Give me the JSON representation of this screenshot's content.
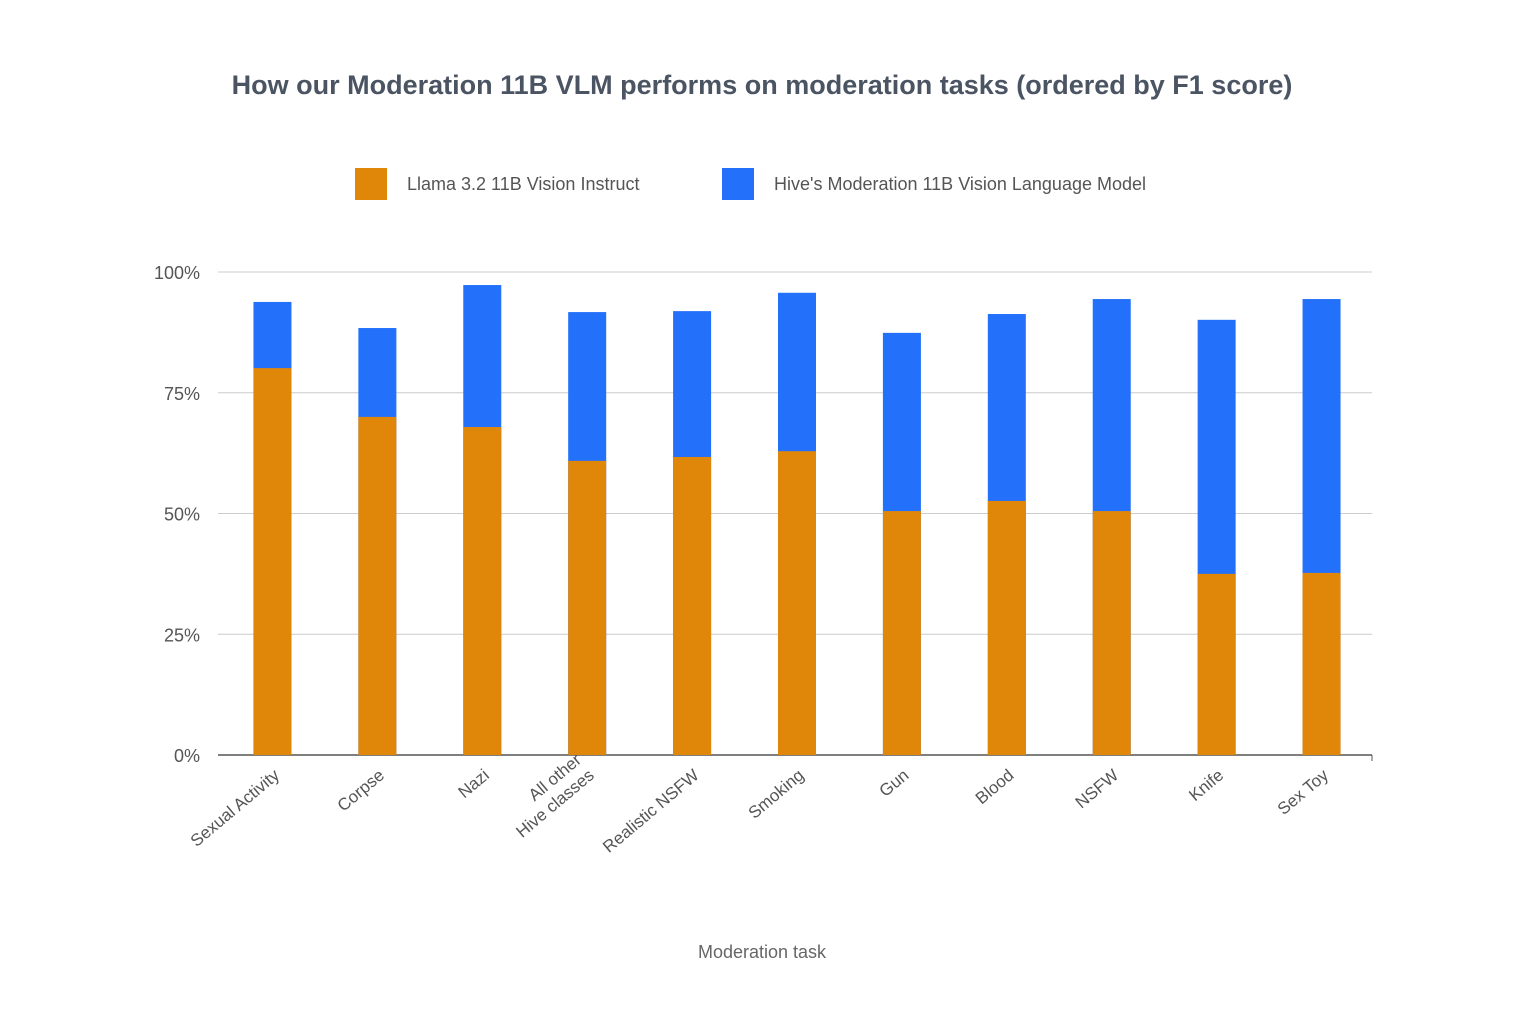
{
  "chart_data": {
    "type": "bar",
    "title": "How our Moderation 11B VLM performs on moderation tasks (ordered by F1 score)",
    "xlabel": "Moderation task",
    "ylabel": "",
    "ylim": [
      0,
      100
    ],
    "yticks": [
      "0%",
      "25%",
      "50%",
      "75%",
      "100%"
    ],
    "ytick_values": [
      0,
      25,
      50,
      75,
      100
    ],
    "grid": true,
    "legend_placement": "top",
    "bar_mode": "overlapped",
    "categories": [
      "Sexual Activity",
      "Corpse",
      "Nazi",
      "All other\nHive classes",
      "Realistic NSFW",
      "Smoking",
      "Gun",
      "Blood",
      "NSFW",
      "Knife",
      "Sex Toy"
    ],
    "series": [
      {
        "name": "Llama 3.2 11B Vision Instruct",
        "color": "#E0870A",
        "values": [
          80.1,
          70.0,
          67.9,
          60.9,
          61.7,
          62.9,
          50.5,
          52.6,
          50.5,
          37.5,
          37.7
        ]
      },
      {
        "name": "Hive's Moderation 11B Vision Language Model",
        "color": "#2370FA",
        "values": [
          93.8,
          88.4,
          97.3,
          91.7,
          91.9,
          95.7,
          87.4,
          91.3,
          94.4,
          90.1,
          94.4
        ]
      }
    ]
  }
}
